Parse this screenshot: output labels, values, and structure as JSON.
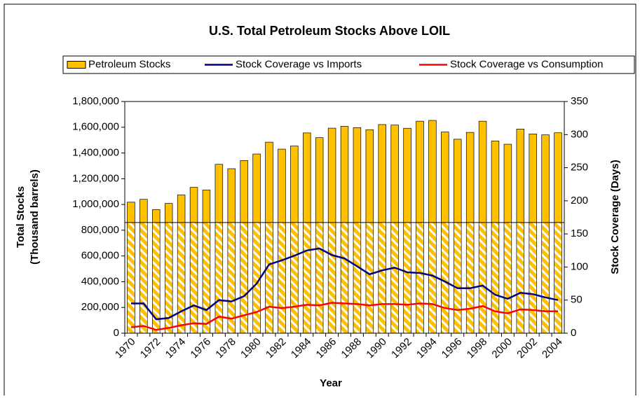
{
  "chart_data": {
    "type": "bar_line",
    "title": "U.S. Total Petroleum Stocks Above LOIL",
    "x_label": "Year",
    "y_label": [
      "Total Stocks",
      "(Thousand barrels)"
    ],
    "y2_label": "Stock Coverage (Days)",
    "categories": [
      "1970",
      null,
      "1972",
      null,
      "1974",
      null,
      "1976",
      null,
      "1978",
      null,
      "1980",
      null,
      "1982",
      null,
      "1984",
      null,
      "1986",
      null,
      "1988",
      null,
      "1990",
      null,
      "1992",
      null,
      "1994",
      null,
      "1996",
      null,
      "1998",
      null,
      "2000",
      null,
      "2002",
      null,
      "2004"
    ],
    "series": [
      {
        "name": "Petroleum Stocks",
        "kind": "bar",
        "color": "#ffc000",
        "values": [
          1018000,
          1040000,
          960000,
          1008000,
          1074000,
          1133000,
          1112000,
          1312000,
          1278000,
          1341000,
          1392000,
          1484000,
          1430000,
          1454000,
          1556000,
          1519000,
          1593000,
          1607000,
          1597000,
          1581000,
          1621000,
          1617000,
          1592000,
          1647000,
          1653000,
          1563000,
          1507000,
          1560000,
          1647000,
          1493000,
          1468000,
          1586000,
          1548000,
          1541000,
          1557000
        ]
      },
      {
        "name": "Stock Coverage vs Imports",
        "kind": "line",
        "axis": "y2",
        "color": "#000080",
        "values": [
          45,
          45,
          21,
          23,
          33,
          42,
          35,
          50,
          48,
          56,
          75,
          104,
          110,
          117,
          125,
          128,
          118,
          113,
          101,
          89,
          95,
          99,
          92,
          91,
          87,
          78,
          68,
          68,
          72,
          58,
          52,
          61,
          59,
          54,
          50
        ]
      },
      {
        "name": "Stock Coverage vs Consumption",
        "kind": "line",
        "axis": "y2",
        "color": "#ff0000",
        "values": [
          9,
          11,
          5,
          8,
          12,
          15,
          14,
          25,
          22,
          27,
          32,
          40,
          38,
          40,
          43,
          42,
          46,
          45,
          44,
          42,
          44,
          44,
          43,
          45,
          44,
          38,
          35,
          37,
          41,
          33,
          30,
          36,
          35,
          33,
          33
        ]
      }
    ],
    "reference_line": 860000,
    "ylim": [
      0,
      1800000
    ],
    "yticks": [
      0,
      {
        "value": 200000,
        "label": "200,000"
      },
      {
        "value": 400000,
        "label": "400,000"
      },
      {
        "value": 600000,
        "label": "600,000"
      },
      {
        "value": 800000,
        "label": "800,000"
      },
      {
        "value": 1000000,
        "label": "1,000,000"
      },
      {
        "value": 1200000,
        "label": "1,200,000"
      },
      {
        "value": 1400000,
        "label": "1,400,000"
      },
      {
        "value": 1600000,
        "label": "1,600,000"
      },
      {
        "value": 1800000,
        "label": "1,800,000"
      }
    ],
    "y2lim": [
      0,
      350
    ],
    "y2ticks": [
      0,
      50,
      100,
      150,
      200,
      250,
      300,
      350
    ]
  }
}
